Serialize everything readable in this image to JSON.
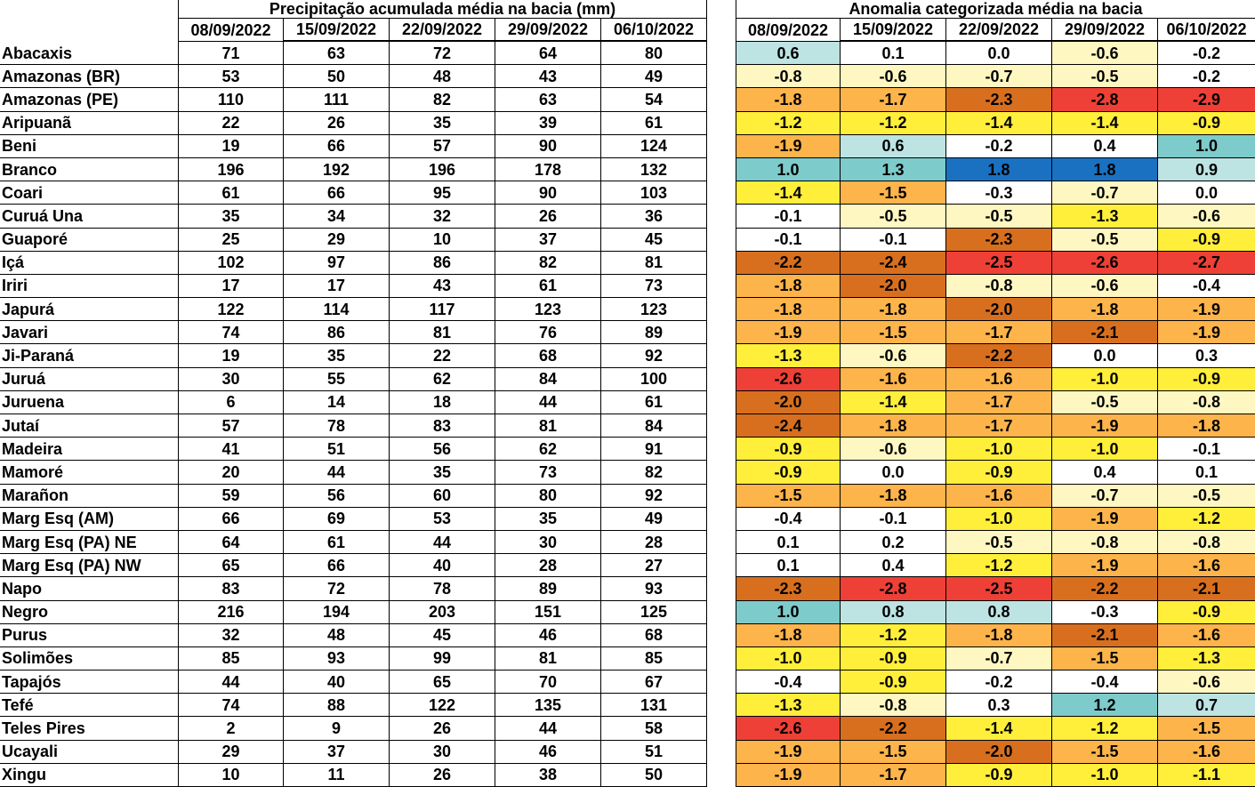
{
  "chart_data": {
    "type": "table",
    "left_title": "Precipitação acumulada média na bacia (mm)",
    "right_title": "Anomalia categorizada média na bacia",
    "dates": [
      "08/09/2022",
      "15/09/2022",
      "22/09/2022",
      "29/09/2022",
      "06/10/2022"
    ],
    "rows": [
      {
        "name": "Abacaxis",
        "precip": [
          "71",
          "63",
          "72",
          "64",
          "80"
        ],
        "anom": [
          "0.6",
          "0.1",
          "0.0",
          "-0.6",
          "-0.2"
        ]
      },
      {
        "name": "Amazonas (BR)",
        "precip": [
          "53",
          "50",
          "48",
          "43",
          "49"
        ],
        "anom": [
          "-0.8",
          "-0.6",
          "-0.7",
          "-0.5",
          "-0.2"
        ]
      },
      {
        "name": "Amazonas (PE)",
        "precip": [
          "110",
          "111",
          "82",
          "63",
          "54"
        ],
        "anom": [
          "-1.8",
          "-1.7",
          "-2.3",
          "-2.8",
          "-2.9"
        ]
      },
      {
        "name": "Aripuanã",
        "precip": [
          "22",
          "26",
          "35",
          "39",
          "61"
        ],
        "anom": [
          "-1.2",
          "-1.2",
          "-1.4",
          "-1.4",
          "-0.9"
        ]
      },
      {
        "name": "Beni",
        "precip": [
          "19",
          "66",
          "57",
          "90",
          "124"
        ],
        "anom": [
          "-1.9",
          "0.6",
          "-0.2",
          "0.4",
          "1.0"
        ]
      },
      {
        "name": "Branco",
        "precip": [
          "196",
          "192",
          "196",
          "178",
          "132"
        ],
        "anom": [
          "1.0",
          "1.3",
          "1.8",
          "1.8",
          "0.9"
        ]
      },
      {
        "name": "Coari",
        "precip": [
          "61",
          "66",
          "95",
          "90",
          "103"
        ],
        "anom": [
          "-1.4",
          "-1.5",
          "-0.3",
          "-0.7",
          "0.0"
        ]
      },
      {
        "name": "Curuá Una",
        "precip": [
          "35",
          "34",
          "32",
          "26",
          "36"
        ],
        "anom": [
          "-0.1",
          "-0.5",
          "-0.5",
          "-1.3",
          "-0.6"
        ]
      },
      {
        "name": "Guaporé",
        "precip": [
          "25",
          "29",
          "10",
          "37",
          "45"
        ],
        "anom": [
          "-0.1",
          "-0.1",
          "-2.3",
          "-0.5",
          "-0.9"
        ]
      },
      {
        "name": "Içá",
        "precip": [
          "102",
          "97",
          "86",
          "82",
          "81"
        ],
        "anom": [
          "-2.2",
          "-2.4",
          "-2.5",
          "-2.6",
          "-2.7"
        ]
      },
      {
        "name": "Iriri",
        "precip": [
          "17",
          "17",
          "43",
          "61",
          "73"
        ],
        "anom": [
          "-1.8",
          "-2.0",
          "-0.8",
          "-0.6",
          "-0.4"
        ]
      },
      {
        "name": "Japurá",
        "precip": [
          "122",
          "114",
          "117",
          "123",
          "123"
        ],
        "anom": [
          "-1.8",
          "-1.8",
          "-2.0",
          "-1.8",
          "-1.9"
        ]
      },
      {
        "name": "Javari",
        "precip": [
          "74",
          "86",
          "81",
          "76",
          "89"
        ],
        "anom": [
          "-1.9",
          "-1.5",
          "-1.7",
          "-2.1",
          "-1.9"
        ]
      },
      {
        "name": "Ji-Paraná",
        "precip": [
          "19",
          "35",
          "22",
          "68",
          "92"
        ],
        "anom": [
          "-1.3",
          "-0.6",
          "-2.2",
          "0.0",
          "0.3"
        ]
      },
      {
        "name": "Juruá",
        "precip": [
          "30",
          "55",
          "62",
          "84",
          "100"
        ],
        "anom": [
          "-2.6",
          "-1.6",
          "-1.6",
          "-1.0",
          "-0.9"
        ]
      },
      {
        "name": "Juruena",
        "precip": [
          "6",
          "14",
          "18",
          "44",
          "61"
        ],
        "anom": [
          "-2.0",
          "-1.4",
          "-1.7",
          "-0.5",
          "-0.8"
        ]
      },
      {
        "name": "Jutaí",
        "precip": [
          "57",
          "78",
          "83",
          "81",
          "84"
        ],
        "anom": [
          "-2.4",
          "-1.8",
          "-1.7",
          "-1.9",
          "-1.8"
        ]
      },
      {
        "name": "Madeira",
        "precip": [
          "41",
          "51",
          "56",
          "62",
          "91"
        ],
        "anom": [
          "-0.9",
          "-0.6",
          "-1.0",
          "-1.0",
          "-0.1"
        ]
      },
      {
        "name": "Mamoré",
        "precip": [
          "20",
          "44",
          "35",
          "73",
          "82"
        ],
        "anom": [
          "-0.9",
          "0.0",
          "-0.9",
          "0.4",
          "0.1"
        ]
      },
      {
        "name": "Marañon",
        "precip": [
          "59",
          "56",
          "60",
          "80",
          "92"
        ],
        "anom": [
          "-1.5",
          "-1.8",
          "-1.6",
          "-0.7",
          "-0.5"
        ]
      },
      {
        "name": "Marg Esq (AM)",
        "precip": [
          "66",
          "69",
          "53",
          "35",
          "49"
        ],
        "anom": [
          "-0.4",
          "-0.1",
          "-1.0",
          "-1.9",
          "-1.2"
        ]
      },
      {
        "name": "Marg Esq (PA) NE",
        "precip": [
          "64",
          "61",
          "44",
          "30",
          "28"
        ],
        "anom": [
          "0.1",
          "0.2",
          "-0.5",
          "-0.8",
          "-0.8"
        ]
      },
      {
        "name": "Marg Esq (PA) NW",
        "precip": [
          "65",
          "66",
          "40",
          "28",
          "27"
        ],
        "anom": [
          "0.1",
          "0.4",
          "-1.2",
          "-1.9",
          "-1.6"
        ]
      },
      {
        "name": "Napo",
        "precip": [
          "83",
          "72",
          "78",
          "89",
          "93"
        ],
        "anom": [
          "-2.3",
          "-2.8",
          "-2.5",
          "-2.2",
          "-2.1"
        ]
      },
      {
        "name": "Negro",
        "precip": [
          "216",
          "194",
          "203",
          "151",
          "125"
        ],
        "anom": [
          "1.0",
          "0.8",
          "0.8",
          "-0.3",
          "-0.9"
        ]
      },
      {
        "name": "Purus",
        "precip": [
          "32",
          "48",
          "45",
          "46",
          "68"
        ],
        "anom": [
          "-1.8",
          "-1.2",
          "-1.8",
          "-2.1",
          "-1.6"
        ]
      },
      {
        "name": "Solimões",
        "precip": [
          "85",
          "93",
          "99",
          "81",
          "85"
        ],
        "anom": [
          "-1.0",
          "-0.9",
          "-0.7",
          "-1.5",
          "-1.3"
        ]
      },
      {
        "name": "Tapajós",
        "precip": [
          "44",
          "40",
          "65",
          "70",
          "67"
        ],
        "anom": [
          "-0.4",
          "-0.9",
          "-0.2",
          "-0.4",
          "-0.6"
        ]
      },
      {
        "name": "Tefé",
        "precip": [
          "74",
          "88",
          "122",
          "135",
          "131"
        ],
        "anom": [
          "-1.3",
          "-0.8",
          "0.3",
          "1.2",
          "0.7"
        ]
      },
      {
        "name": "Teles Pires",
        "precip": [
          "2",
          "9",
          "26",
          "44",
          "58"
        ],
        "anom": [
          "-2.6",
          "-2.2",
          "-1.4",
          "-1.2",
          "-1.5"
        ]
      },
      {
        "name": "Ucayali",
        "precip": [
          "29",
          "37",
          "30",
          "46",
          "51"
        ],
        "anom": [
          "-1.9",
          "-1.5",
          "-2.0",
          "-1.5",
          "-1.6"
        ]
      },
      {
        "name": "Xingu",
        "precip": [
          "10",
          "11",
          "26",
          "38",
          "50"
        ],
        "anom": [
          "-1.9",
          "-1.7",
          "-0.9",
          "-1.0",
          "-1.1"
        ]
      }
    ],
    "anomaly_colors": {
      "le_-2.5": "#ee4036",
      "-2.5_to_-2.0": "#d86f1e",
      "-2.0_to_-1.5": "#fdb44b",
      "-1.5_to_-0.9": "#ffee3a",
      "-0.9_to_-0.5": "#fff7c2",
      "-0.5_to_0.5": "#ffffff",
      "0.5_to_1.0": "#bde3e3",
      "1.0_to_1.5": "#7ecbcb",
      "ge_1.5": "#1a71c1"
    }
  }
}
